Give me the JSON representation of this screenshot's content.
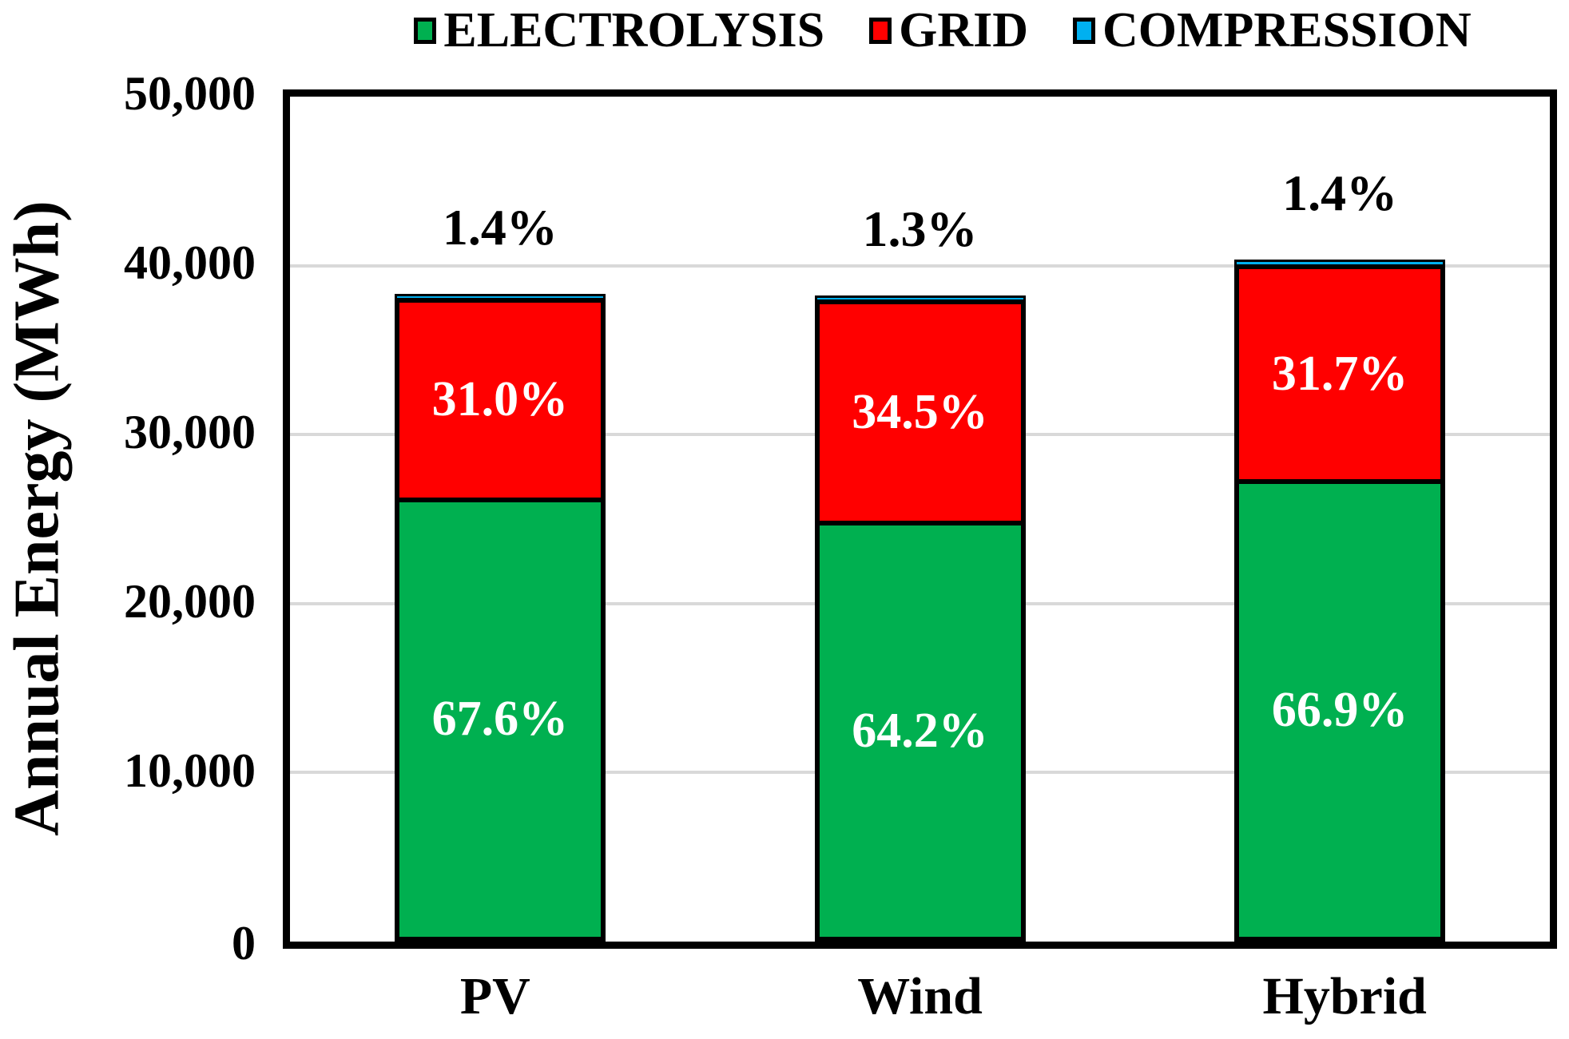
{
  "chart_data": {
    "type": "bar",
    "stacked": true,
    "ylabel": "Annual Energy (MWh)",
    "xlabel": "",
    "categories": [
      "PV",
      "Wind",
      "Hybrid"
    ],
    "series": [
      {
        "name": "ELECTROLYSIS",
        "color": "#00B050",
        "values": [
          26300,
          24910,
          27380
        ],
        "pct_labels": [
          "67.6%",
          "64.2%",
          "66.9%"
        ]
      },
      {
        "name": "GRID",
        "color": "#FF0000",
        "values": [
          12060,
          13390,
          12980
        ],
        "pct_labels": [
          "31.0%",
          "34.5%",
          "31.7%"
        ]
      },
      {
        "name": "COMPRESSION",
        "color": "#00B0F0",
        "values": [
          545,
          505,
          570
        ],
        "pct_labels": [
          "1.4%",
          "1.3%",
          "1.4%"
        ]
      }
    ],
    "totals": [
      38905,
      38805,
      40930
    ],
    "ylim": [
      0,
      50000
    ],
    "y_ticks": [
      "50,000",
      "40,000",
      "30,000",
      "20,000",
      "10,000",
      "0"
    ],
    "grid": true,
    "gridline_color": "#D9D9D9",
    "legend_position": "top"
  }
}
